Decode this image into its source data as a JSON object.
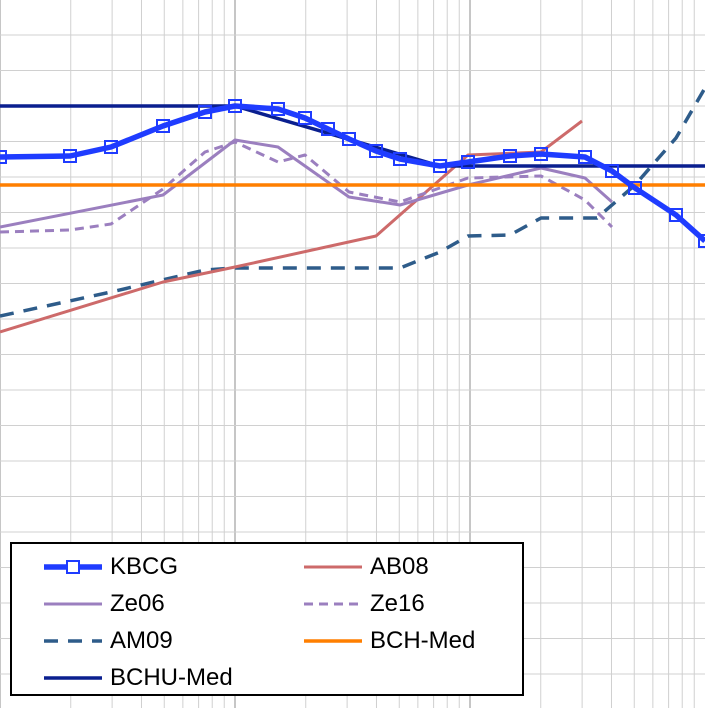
{
  "chart_data": {
    "type": "line",
    "grid": true,
    "legend_position": "bottom-left",
    "series": [
      {
        "name": "KBCG",
        "color": "#1f3cff",
        "style": "solid-thick",
        "marker": "square",
        "points": [
          [
            0,
            157
          ],
          [
            70,
            156
          ],
          [
            111,
            147
          ],
          [
            163,
            126
          ],
          [
            205,
            112
          ],
          [
            235,
            106
          ],
          [
            278,
            109
          ],
          [
            305,
            118
          ],
          [
            328,
            129
          ],
          [
            349,
            139
          ],
          [
            376,
            151
          ],
          [
            400,
            159
          ],
          [
            440,
            166
          ],
          [
            468,
            162
          ],
          [
            510,
            156
          ],
          [
            541,
            154
          ],
          [
            585,
            157
          ],
          [
            612,
            171
          ],
          [
            635,
            188
          ],
          [
            676,
            215
          ],
          [
            705,
            241
          ]
        ]
      },
      {
        "name": "AB08",
        "color": "#cd6a6a",
        "style": "solid",
        "points": [
          [
            0,
            332
          ],
          [
            163,
            282
          ],
          [
            235,
            267
          ],
          [
            376,
            236
          ],
          [
            468,
            155
          ],
          [
            541,
            152
          ],
          [
            582,
            121
          ]
        ]
      },
      {
        "name": "Ze06",
        "color": "#9b7fbf",
        "style": "solid",
        "points": [
          [
            0,
            227
          ],
          [
            163,
            195
          ],
          [
            235,
            140
          ],
          [
            278,
            147
          ],
          [
            349,
            197
          ],
          [
            400,
            205
          ],
          [
            468,
            185
          ],
          [
            541,
            168
          ],
          [
            585,
            178
          ],
          [
            612,
            202
          ]
        ]
      },
      {
        "name": "Ze16",
        "color": "#9b7fbf",
        "style": "dashed",
        "points": [
          [
            0,
            232
          ],
          [
            70,
            230
          ],
          [
            111,
            224
          ],
          [
            163,
            189
          ],
          [
            205,
            152
          ],
          [
            235,
            142
          ],
          [
            278,
            162
          ],
          [
            305,
            155
          ],
          [
            349,
            192
          ],
          [
            400,
            202
          ],
          [
            468,
            178
          ],
          [
            541,
            176
          ],
          [
            585,
            200
          ],
          [
            612,
            227
          ]
        ]
      },
      {
        "name": "AM09",
        "color": "#2e5c8a",
        "style": "dashed-thick",
        "points": [
          [
            0,
            316
          ],
          [
            111,
            292
          ],
          [
            205,
            270
          ],
          [
            235,
            268
          ],
          [
            400,
            268
          ],
          [
            440,
            252
          ],
          [
            468,
            236
          ],
          [
            510,
            235
          ],
          [
            541,
            218
          ],
          [
            597,
            218
          ],
          [
            635,
            185
          ],
          [
            676,
            138
          ],
          [
            705,
            88
          ]
        ]
      },
      {
        "name": "BCH-Med",
        "color": "#ff7f00",
        "style": "solid-thick",
        "points": [
          [
            0,
            185
          ],
          [
            705,
            185
          ]
        ]
      },
      {
        "name": "BCHU-Med",
        "color": "#0a1f8f",
        "style": "solid-thick",
        "points": [
          [
            0,
            106
          ],
          [
            235,
            106
          ],
          [
            440,
            166
          ],
          [
            705,
            166
          ]
        ]
      }
    ]
  },
  "legend": {
    "items": [
      "KBCG",
      "AB08",
      "Ze06",
      "Ze16",
      "AM09",
      "BCH-Med",
      "BCHU-Med"
    ]
  }
}
